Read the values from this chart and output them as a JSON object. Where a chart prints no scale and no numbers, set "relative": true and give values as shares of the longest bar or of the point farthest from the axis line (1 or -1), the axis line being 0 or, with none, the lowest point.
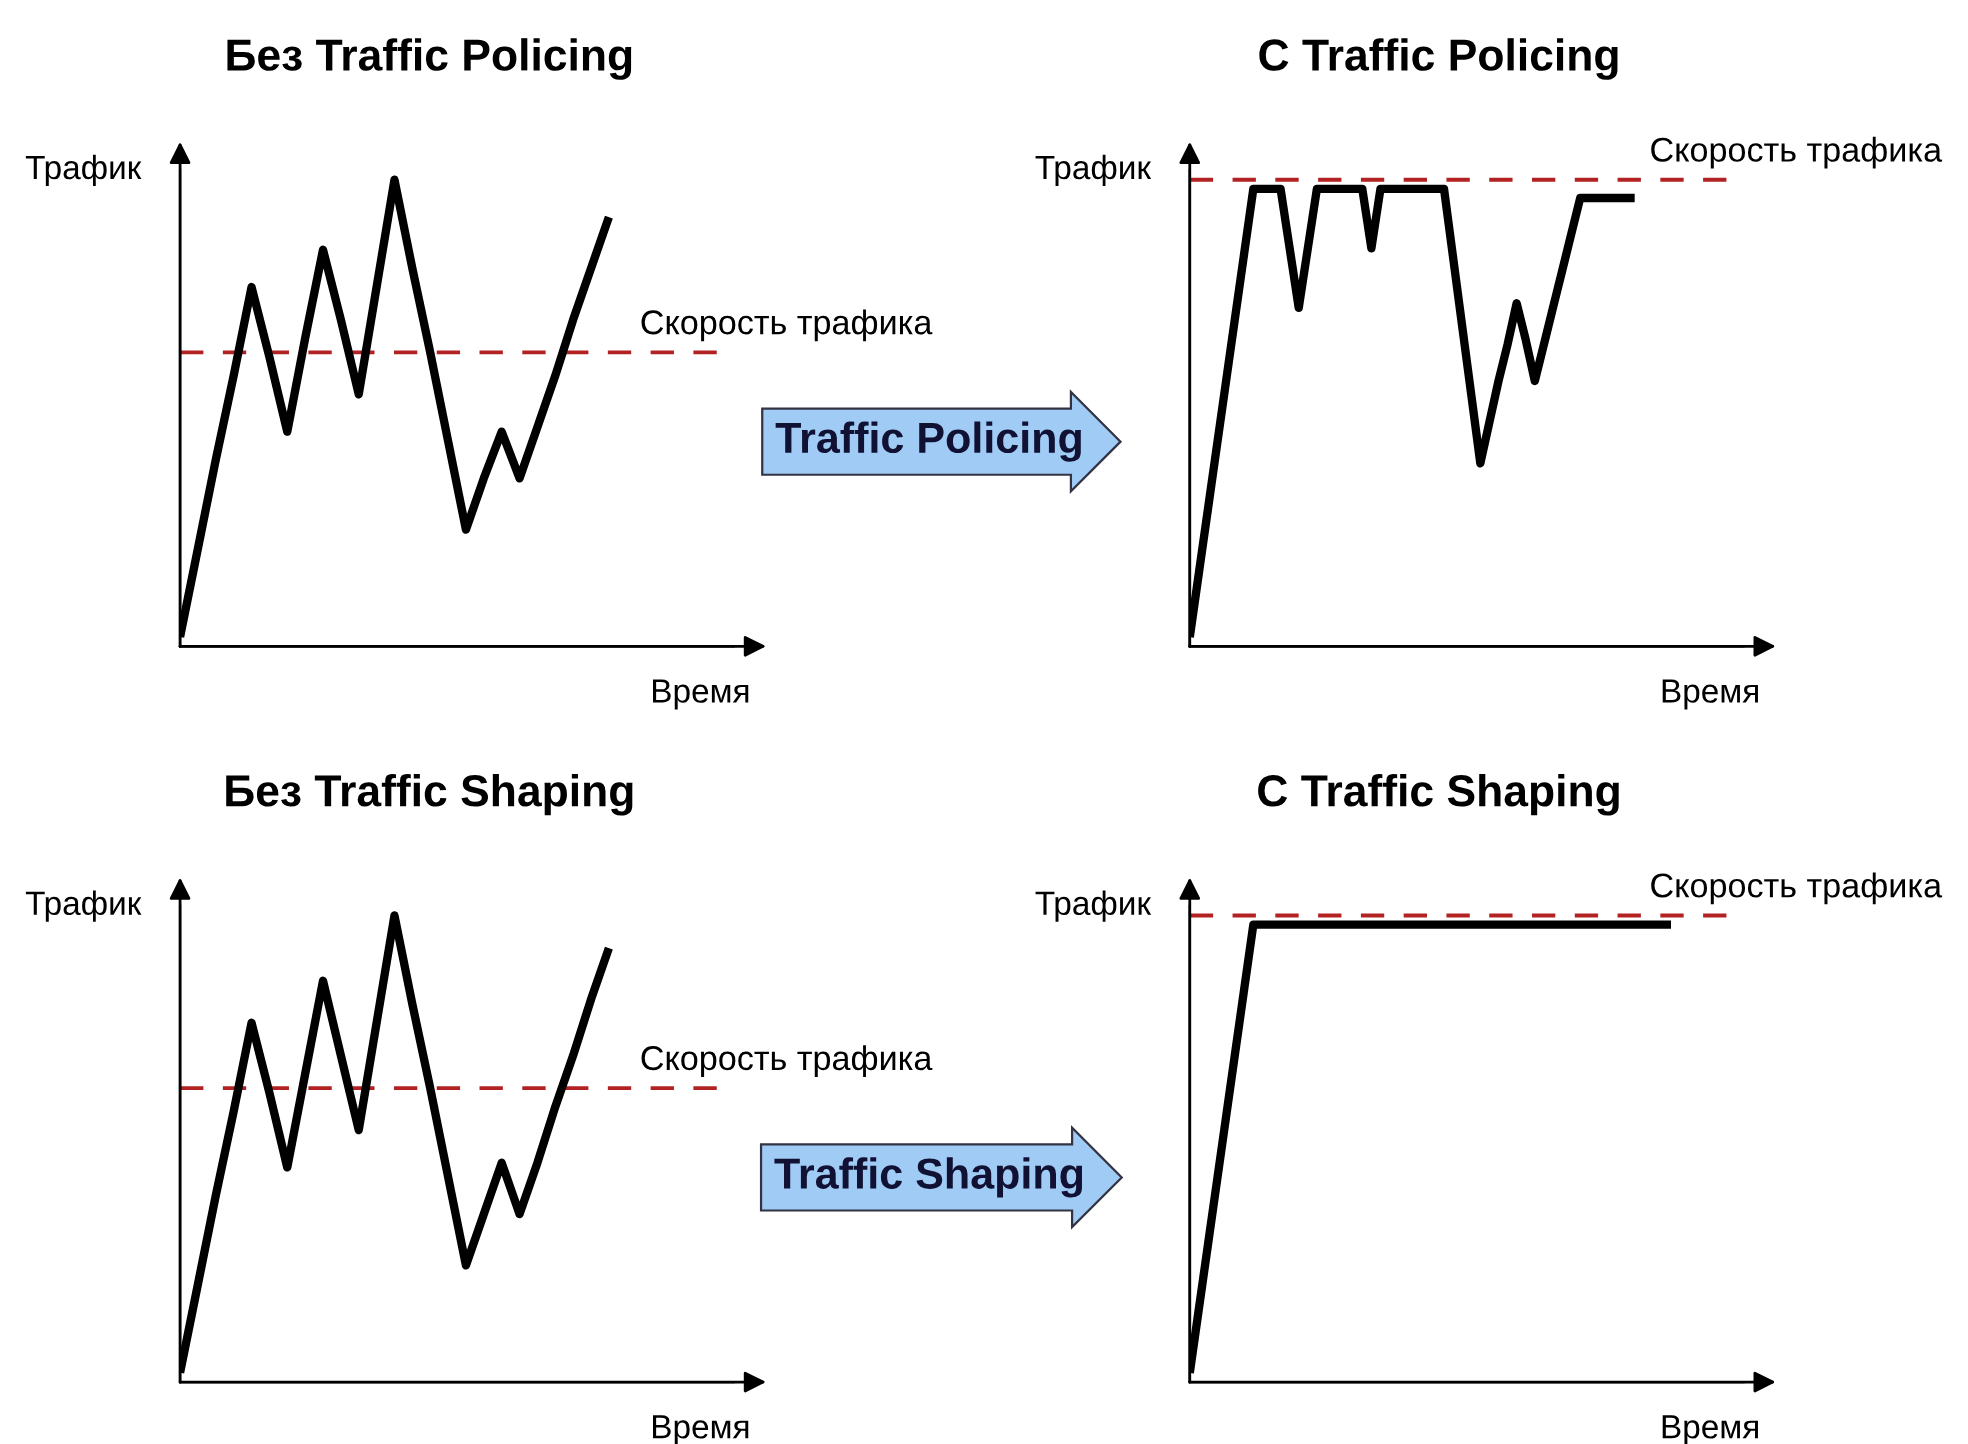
{
  "chart_data": [
    {
      "type": "line",
      "title": "Без Traffic Policing",
      "xlabel": "Время",
      "ylabel": "Трафик",
      "relative": true,
      "categories": [
        null,
        null,
        null,
        null,
        null,
        null,
        null,
        null,
        null,
        null,
        null,
        null,
        null,
        null,
        null,
        null,
        null,
        null,
        null,
        null,
        null,
        null,
        null,
        null,
        null,
        null,
        null,
        null,
        null,
        null,
        null,
        null
      ],
      "series": [
        {
          "color": "#000000",
          "values": [
            0.02,
            0.21,
            0.4,
            0.58,
            0.77,
            0.62,
            0.46,
            0.66,
            0.85,
            0.7,
            0.54,
            0.77,
            1,
            0.81,
            0.63,
            0.44,
            0.25,
            0.36,
            0.46,
            0.36,
            0.47,
            0.58,
            0.7,
            0.81,
            0.92,
            null,
            null,
            null,
            null,
            null,
            null,
            null
          ]
        }
      ],
      "ref_lines": [
        {
          "axis": "y",
          "value": 0.63,
          "label": "Скорость трафика",
          "color": "#b22222",
          "line_style": "dashed"
        }
      ]
    },
    {
      "type": "line",
      "title": "С Traffic Policing",
      "xlabel": "Время",
      "ylabel": "Трафик",
      "relative": true,
      "categories": [
        null,
        null,
        null,
        null,
        null,
        null,
        null,
        null,
        null,
        null,
        null,
        null,
        null,
        null,
        null,
        null,
        null,
        null,
        null,
        null,
        null,
        null,
        null,
        null,
        null,
        null,
        null,
        null,
        null,
        null,
        null,
        null,
        null,
        null,
        null,
        null,
        null,
        null,
        null,
        null,
        null,
        null,
        null,
        null,
        null,
        null,
        null,
        null,
        null,
        null,
        null,
        null,
        null,
        null,
        null,
        null,
        null,
        null,
        null,
        null,
        null,
        null
      ],
      "series": [
        {
          "color": "#000000",
          "values": [
            0.02,
            0.16,
            0.3,
            0.44,
            0.58,
            0.72,
            0.86,
            1,
            1,
            1,
            1,
            0.87,
            0.74,
            0.87,
            1,
            1,
            1,
            1,
            1,
            1,
            0.87,
            1,
            1,
            1,
            1,
            1,
            1,
            1,
            1,
            0.85,
            0.7,
            0.55,
            0.4,
            0.49,
            0.58,
            0.66,
            0.75,
            0.67,
            0.58,
            0.66,
            0.74,
            0.82,
            0.9,
            0.98,
            0.98,
            0.98,
            0.98,
            0.98,
            0.98,
            0.98,
            null,
            null,
            null,
            null,
            null,
            null,
            null,
            null,
            null,
            null,
            null,
            null
          ]
        }
      ],
      "ref_lines": [
        {
          "axis": "y",
          "value": 1.02,
          "label": "Скорость трафика",
          "color": "#b22222",
          "line_style": "dashed"
        }
      ],
      "annotations": [
        "Traffic Policing"
      ]
    },
    {
      "type": "line",
      "title": "Без Traffic Shaping",
      "xlabel": "Время",
      "ylabel": "Трафик",
      "relative": true,
      "categories": [
        null,
        null,
        null,
        null,
        null,
        null,
        null,
        null,
        null,
        null,
        null,
        null,
        null,
        null,
        null,
        null,
        null,
        null,
        null,
        null,
        null,
        null,
        null,
        null,
        null,
        null,
        null,
        null,
        null,
        null,
        null,
        null
      ],
      "series": [
        {
          "color": "#000000",
          "values": [
            0.02,
            0.21,
            0.4,
            0.58,
            0.77,
            0.62,
            0.46,
            0.66,
            0.86,
            0.7,
            0.54,
            0.77,
            1,
            0.81,
            0.63,
            0.44,
            0.25,
            0.36,
            0.47,
            0.36,
            0.47,
            0.59,
            0.7,
            0.82,
            0.93,
            null,
            null,
            null,
            null,
            null,
            null,
            null
          ]
        }
      ],
      "ref_lines": [
        {
          "axis": "y",
          "value": 0.63,
          "label": "Скорость трафика",
          "color": "#b22222",
          "line_style": "dashed"
        }
      ]
    },
    {
      "type": "line",
      "title": "С Traffic Shaping",
      "xlabel": "Время",
      "ylabel": "Трафик",
      "relative": true,
      "categories": [
        null,
        null,
        null,
        null,
        null,
        null,
        null,
        null,
        null,
        null,
        null,
        null,
        null,
        null,
        null,
        null,
        null,
        null,
        null,
        null,
        null,
        null,
        null,
        null,
        null,
        null,
        null,
        null,
        null,
        null,
        null,
        null,
        null,
        null,
        null,
        null,
        null,
        null,
        null,
        null,
        null,
        null,
        null,
        null,
        null,
        null,
        null,
        null,
        null,
        null,
        null,
        null,
        null,
        null,
        null,
        null,
        null,
        null,
        null,
        null,
        null,
        null
      ],
      "series": [
        {
          "color": "#000000",
          "values": [
            0.02,
            0.16,
            0.3,
            0.44,
            0.58,
            0.72,
            0.86,
            1,
            1,
            1,
            1,
            1,
            1,
            1,
            1,
            1,
            1,
            1,
            1,
            1,
            1,
            1,
            1,
            1,
            1,
            1,
            1,
            1,
            1,
            1,
            1,
            1,
            1,
            1,
            1,
            1,
            1,
            1,
            1,
            1,
            1,
            1,
            1,
            1,
            1,
            1,
            1,
            1,
            1,
            1,
            1,
            1,
            1,
            1,
            null,
            null,
            null,
            null,
            null,
            null,
            null,
            null
          ]
        }
      ],
      "ref_lines": [
        {
          "axis": "y",
          "value": 1.02,
          "label": "Скорость трафика",
          "color": "#b22222",
          "line_style": "dashed"
        }
      ],
      "annotations": [
        "Traffic Shaping"
      ]
    }
  ]
}
